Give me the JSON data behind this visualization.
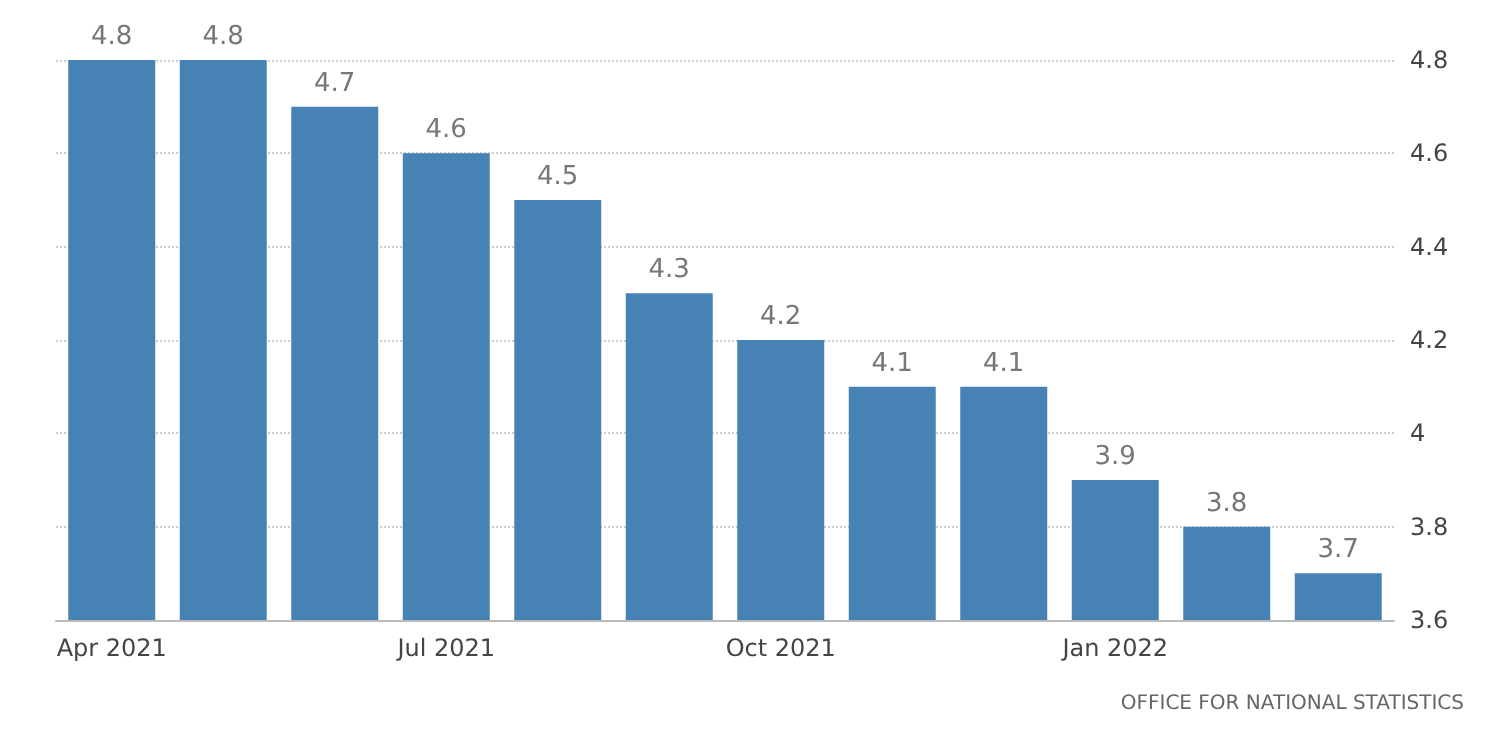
{
  "chart_data": {
    "type": "bar",
    "categories": [
      "Apr 2021",
      null,
      null,
      "Jul 2021",
      null,
      null,
      "Oct 2021",
      null,
      null,
      "Jan 2022",
      null,
      null
    ],
    "values": [
      4.8,
      4.8,
      4.7,
      4.6,
      4.5,
      4.3,
      4.2,
      4.1,
      4.1,
      3.9,
      3.8,
      3.7
    ],
    "color": "#4682b4",
    "ylim": [
      3.6,
      4.8
    ],
    "yticks": [
      3.6,
      3.8,
      4,
      4.2,
      4.4,
      4.6,
      4.8
    ],
    "grid": "y",
    "data_labels": true,
    "annotations": [
      "OFFICE FOR NATIONAL STATISTICS"
    ]
  }
}
